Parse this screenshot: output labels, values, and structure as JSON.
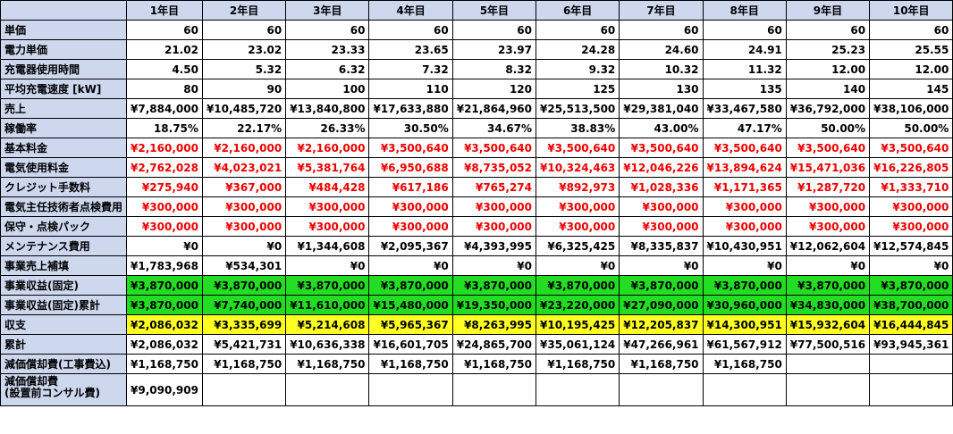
{
  "headers": [
    "",
    "1年目",
    "2年目",
    "3年目",
    "4年目",
    "5年目",
    "6年目",
    "7年目",
    "8年目",
    "9年目",
    "10年目"
  ],
  "rows": [
    {
      "label": "単価",
      "style": "",
      "values": [
        "60",
        "60",
        "60",
        "60",
        "60",
        "60",
        "60",
        "60",
        "60",
        "60"
      ]
    },
    {
      "label": "電力単価",
      "style": "",
      "values": [
        "21.02",
        "23.02",
        "23.33",
        "23.65",
        "23.97",
        "24.28",
        "24.60",
        "24.91",
        "25.23",
        "25.55"
      ]
    },
    {
      "label": "充電器使用時間",
      "style": "",
      "values": [
        "4.50",
        "5.32",
        "6.32",
        "7.32",
        "8.32",
        "9.32",
        "10.32",
        "11.32",
        "12.00",
        "12.00"
      ]
    },
    {
      "label": "平均充電速度 [kW]",
      "style": "",
      "values": [
        "80",
        "90",
        "100",
        "110",
        "120",
        "125",
        "130",
        "135",
        "140",
        "145"
      ]
    },
    {
      "label": "売上",
      "style": "",
      "values": [
        "¥7,884,000",
        "¥10,485,720",
        "¥13,840,800",
        "¥17,633,880",
        "¥21,864,960",
        "¥25,513,500",
        "¥29,381,040",
        "¥33,467,580",
        "¥36,792,000",
        "¥38,106,000"
      ]
    },
    {
      "label": "稼働率",
      "style": "",
      "values": [
        "18.75%",
        "22.17%",
        "26.33%",
        "30.50%",
        "34.67%",
        "38.83%",
        "43.00%",
        "47.17%",
        "50.00%",
        "50.00%"
      ]
    },
    {
      "label": "基本料金",
      "style": "red",
      "values": [
        "¥2,160,000",
        "¥2,160,000",
        "¥2,160,000",
        "¥3,500,640",
        "¥3,500,640",
        "¥3,500,640",
        "¥3,500,640",
        "¥3,500,640",
        "¥3,500,640",
        "¥3,500,640"
      ]
    },
    {
      "label": "電気使用料金",
      "style": "red",
      "values": [
        "¥2,762,028",
        "¥4,023,021",
        "¥5,381,764",
        "¥6,950,688",
        "¥8,735,052",
        "¥10,324,463",
        "¥12,046,226",
        "¥13,894,624",
        "¥15,471,036",
        "¥16,226,805"
      ]
    },
    {
      "label": "クレジット手数料",
      "style": "red",
      "values": [
        "¥275,940",
        "¥367,000",
        "¥484,428",
        "¥617,186",
        "¥765,274",
        "¥892,973",
        "¥1,028,336",
        "¥1,171,365",
        "¥1,287,720",
        "¥1,333,710"
      ]
    },
    {
      "label": "電気主任技術者点検費用",
      "style": "red",
      "values": [
        "¥300,000",
        "¥300,000",
        "¥300,000",
        "¥300,000",
        "¥300,000",
        "¥300,000",
        "¥300,000",
        "¥300,000",
        "¥300,000",
        "¥300,000"
      ]
    },
    {
      "label": "保守・点検パック",
      "style": "red",
      "values": [
        "¥300,000",
        "¥300,000",
        "¥300,000",
        "¥300,000",
        "¥300,000",
        "¥300,000",
        "¥300,000",
        "¥300,000",
        "¥300,000",
        "¥300,000"
      ]
    },
    {
      "label": "メンテナンス費用",
      "style": "",
      "values": [
        "¥0",
        "¥0",
        "¥1,344,608",
        "¥2,095,367",
        "¥4,393,995",
        "¥6,325,425",
        "¥8,335,837",
        "¥10,430,951",
        "¥12,062,604",
        "¥12,574,845"
      ]
    },
    {
      "label": "事業売上補填",
      "style": "",
      "values": [
        "¥1,783,968",
        "¥534,301",
        "¥0",
        "¥0",
        "¥0",
        "¥0",
        "¥0",
        "¥0",
        "¥0",
        "¥0"
      ]
    },
    {
      "label": "事業収益(固定)",
      "style": "green",
      "values": [
        "¥3,870,000",
        "¥3,870,000",
        "¥3,870,000",
        "¥3,870,000",
        "¥3,870,000",
        "¥3,870,000",
        "¥3,870,000",
        "¥3,870,000",
        "¥3,870,000",
        "¥3,870,000"
      ]
    },
    {
      "label": "事業収益(固定)累計",
      "style": "green",
      "values": [
        "¥3,870,000",
        "¥7,740,000",
        "¥11,610,000",
        "¥15,480,000",
        "¥19,350,000",
        "¥23,220,000",
        "¥27,090,000",
        "¥30,960,000",
        "¥34,830,000",
        "¥38,700,000"
      ]
    },
    {
      "label": "収支",
      "style": "yellow",
      "values": [
        "¥2,086,032",
        "¥3,335,699",
        "¥5,214,608",
        "¥5,965,367",
        "¥8,263,995",
        "¥10,195,425",
        "¥12,205,837",
        "¥14,300,951",
        "¥15,932,604",
        "¥16,444,845"
      ]
    },
    {
      "label": "累計",
      "style": "",
      "values": [
        "¥2,086,032",
        "¥5,421,731",
        "¥10,636,338",
        "¥16,601,705",
        "¥24,865,700",
        "¥35,061,124",
        "¥47,266,961",
        "¥61,567,912",
        "¥77,500,516",
        "¥93,945,361"
      ]
    },
    {
      "label": "減価償却費(工事費込)",
      "style": "",
      "values": [
        "¥1,168,750",
        "¥1,168,750",
        "¥1,168,750",
        "¥1,168,750",
        "¥1,168,750",
        "¥1,168,750",
        "¥1,168,750",
        "¥1,168,750",
        "",
        ""
      ]
    },
    {
      "label": "減価償却費\n(設置前コンサル費)",
      "style": "tall",
      "values": [
        "¥9,090,909",
        "",
        "",
        "",
        "",
        "",
        "",
        "",
        "",
        ""
      ]
    }
  ]
}
